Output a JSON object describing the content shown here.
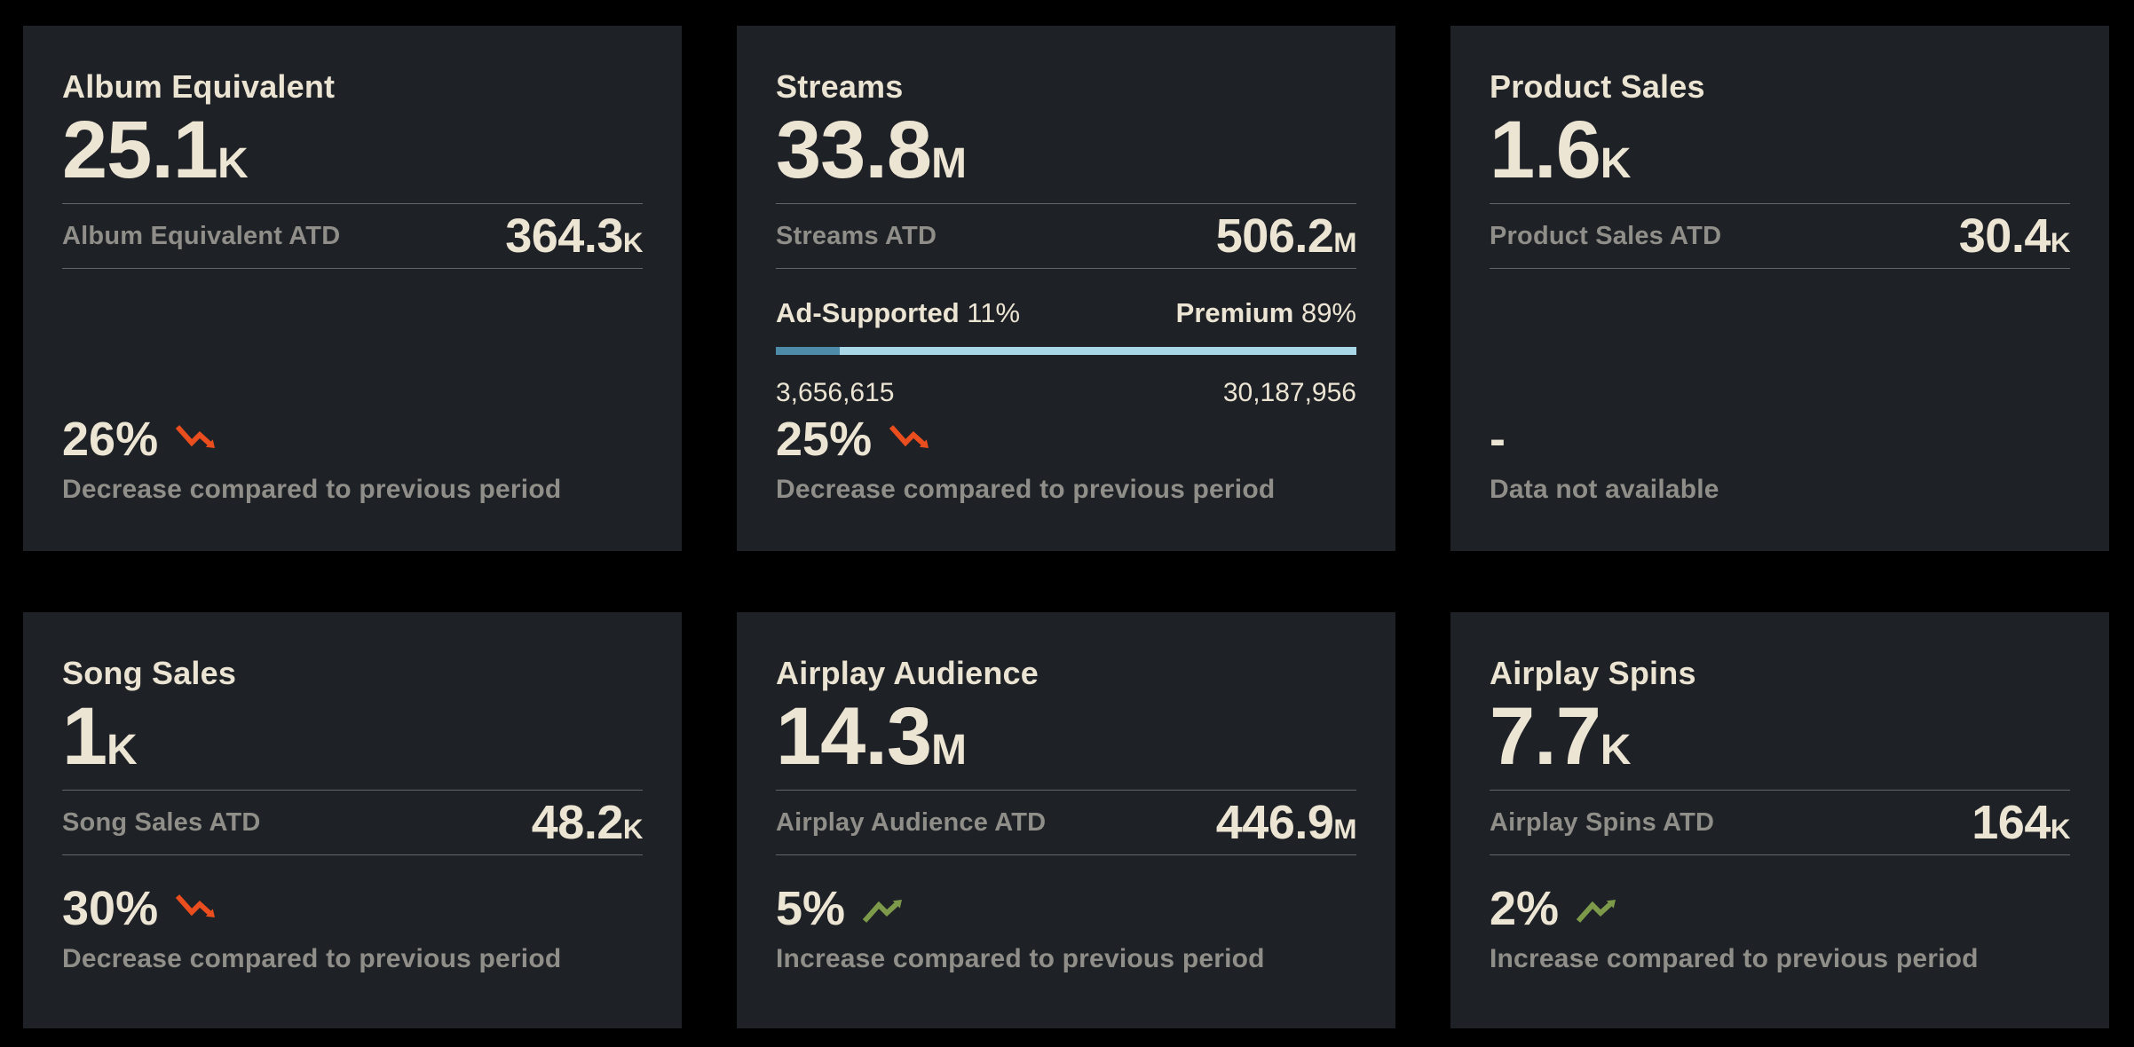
{
  "colors": {
    "page_bg": "#000000",
    "card_bg": "#1e2126",
    "text_primary": "#ede5d4",
    "text_muted": "#908e88",
    "divider": "#62656a",
    "trend_down": "#eb4e1e",
    "trend_up": "#7d9a4b",
    "bar_ad_supported": "#4e8ba8",
    "bar_premium": "#a9d7e8"
  },
  "cards": [
    {
      "title": "Album Equivalent",
      "value": "25.1",
      "value_suffix": "K",
      "atd_label": "Album Equivalent ATD",
      "atd_value": "364.3",
      "atd_suffix": "K",
      "trend": {
        "percent": "26%",
        "direction": "down",
        "icon": "trend-down-icon",
        "description": "Decrease compared to previous period"
      }
    },
    {
      "title": "Streams",
      "value": "33.8",
      "value_suffix": "M",
      "atd_label": "Streams ATD",
      "atd_value": "506.2",
      "atd_suffix": "M",
      "split": {
        "left_label": "Ad-Supported",
        "left_percent": "11%",
        "left_ratio": 11,
        "right_label": "Premium",
        "right_percent": "89%",
        "right_ratio": 89,
        "left_value": "3,656,615",
        "right_value": "30,187,956"
      },
      "trend": {
        "percent": "25%",
        "direction": "down",
        "icon": "trend-down-icon",
        "description": "Decrease compared to previous period"
      }
    },
    {
      "title": "Product Sales",
      "value": "1.6",
      "value_suffix": "K",
      "atd_label": "Product Sales ATD",
      "atd_value": "30.4",
      "atd_suffix": "K",
      "trend": {
        "placeholder": "-",
        "direction": "none",
        "description": "Data not available"
      }
    },
    {
      "title": "Song Sales",
      "value": "1",
      "value_suffix": "K",
      "atd_label": "Song Sales ATD",
      "atd_value": "48.2",
      "atd_suffix": "K",
      "trend": {
        "percent": "30%",
        "direction": "down",
        "icon": "trend-down-icon",
        "description": "Decrease compared to previous period"
      }
    },
    {
      "title": "Airplay Audience",
      "value": "14.3",
      "value_suffix": "M",
      "atd_label": "Airplay Audience ATD",
      "atd_value": "446.9",
      "atd_suffix": "M",
      "trend": {
        "percent": "5%",
        "direction": "up",
        "icon": "trend-up-icon",
        "description": "Increase compared to previous period"
      }
    },
    {
      "title": "Airplay Spins",
      "value": "7.7",
      "value_suffix": "K",
      "atd_label": "Airplay Spins ATD",
      "atd_value": "164",
      "atd_suffix": "K",
      "trend": {
        "percent": "2%",
        "direction": "up",
        "icon": "trend-up-icon",
        "description": "Increase compared to previous period"
      }
    }
  ]
}
